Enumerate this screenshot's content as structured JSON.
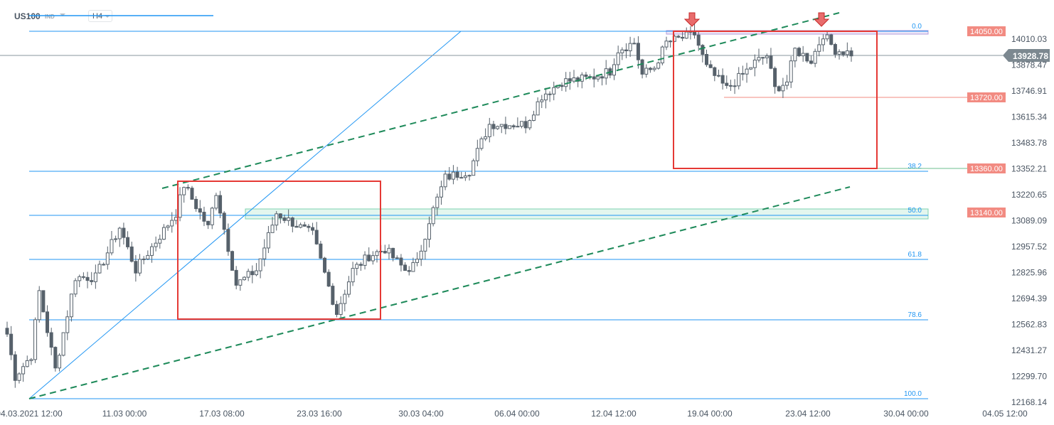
{
  "header": {
    "symbol": "US100",
    "market": "IND",
    "timeframe": "H4"
  },
  "colors": {
    "fib": "#2196f3",
    "up_fill": "#ffffff",
    "candle": "#56616b",
    "box": "#e53935",
    "trend": "#1e8a5a",
    "label_bg": "#f28b82",
    "price_tag": "#7c8890"
  },
  "current_price": "13928.78",
  "price_labels": [
    {
      "price": 14050,
      "text": "14050.00"
    },
    {
      "price": 13720,
      "text": "13720.00"
    },
    {
      "price": 13360,
      "text": "13360.00"
    },
    {
      "price": 13140,
      "text": "13140.00"
    }
  ],
  "fib_levels": [
    {
      "level": "0.0",
      "price": 14050
    },
    {
      "level": "38.2",
      "price": 13331
    },
    {
      "level": "50.0",
      "price": 13109
    },
    {
      "level": "61.8",
      "price": 12886
    },
    {
      "level": "78.6",
      "price": 12570
    },
    {
      "level": "100.0",
      "price": 12168
    }
  ],
  "chart_data": {
    "type": "candlestick",
    "y_ticks": [
      "14010.03",
      "13878.47",
      "13746.91",
      "13615.34",
      "13483.78",
      "13352.21",
      "13220.65",
      "13089.09",
      "12957.52",
      "12825.96",
      "12694.39",
      "12562.83",
      "12431.27",
      "12299.70",
      "12168.14"
    ],
    "y_range": [
      12168.14,
      14010.03
    ],
    "x_ticks": [
      "04.03.2021  12:00",
      "11.03  00:00",
      "17.03  08:00",
      "23.03  16:00",
      "30.03  04:00",
      "06.04  00:00",
      "12.04  12:00",
      "19.04  00:00",
      "23.04  12:00",
      "30.04  00:00",
      "04.05  12:00"
    ],
    "close_waypoints": [
      [
        0,
        12514
      ],
      [
        2,
        12298
      ],
      [
        6,
        12406
      ],
      [
        8,
        12730
      ],
      [
        12,
        12334
      ],
      [
        17,
        12802
      ],
      [
        22,
        12802
      ],
      [
        28,
        13055
      ],
      [
        32,
        12840
      ],
      [
        42,
        13127
      ],
      [
        44,
        13271
      ],
      [
        50,
        13055
      ],
      [
        52,
        13235
      ],
      [
        57,
        12766
      ],
      [
        62,
        12838
      ],
      [
        67,
        13127
      ],
      [
        76,
        13019
      ],
      [
        82,
        12622
      ],
      [
        86,
        12838
      ],
      [
        90,
        12910
      ],
      [
        94,
        12946
      ],
      [
        99,
        12838
      ],
      [
        102,
        12874
      ],
      [
        105,
        13091
      ],
      [
        109,
        13307
      ],
      [
        115,
        13343
      ],
      [
        118,
        13487
      ],
      [
        120,
        13578
      ],
      [
        129,
        13578
      ],
      [
        133,
        13722
      ],
      [
        138,
        13794
      ],
      [
        145,
        13812
      ],
      [
        150,
        13848
      ],
      [
        152,
        13956
      ],
      [
        156,
        13992
      ],
      [
        158,
        13830
      ],
      [
        161,
        13866
      ],
      [
        164,
        13992
      ],
      [
        171,
        14035
      ],
      [
        174,
        13866
      ],
      [
        179,
        13758
      ],
      [
        183,
        13830
      ],
      [
        186,
        13891
      ],
      [
        189,
        13927
      ],
      [
        191,
        13758
      ],
      [
        194,
        13794
      ],
      [
        196,
        13956
      ],
      [
        200,
        13902
      ],
      [
        203,
        14035
      ],
      [
        206,
        13956
      ],
      [
        210,
        13938
      ]
    ]
  },
  "annotations": {
    "resistance": 14050,
    "support_zone": 13140,
    "arrows": 2
  }
}
